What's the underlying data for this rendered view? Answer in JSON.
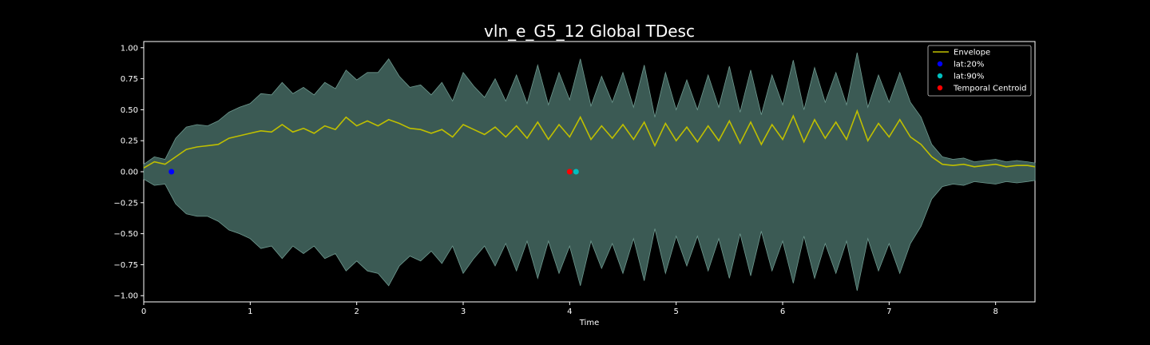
{
  "chart_data": {
    "type": "line",
    "title": "vln_e_G5_12 Global TDesc",
    "xlabel": "Time",
    "ylabel": "",
    "xlim": [
      0,
      8.37
    ],
    "ylim": [
      -1.05,
      1.05
    ],
    "xticks": [
      0,
      1,
      2,
      3,
      4,
      5,
      6,
      7,
      8
    ],
    "xtick_labels": [
      "0",
      "1",
      "2",
      "3",
      "4",
      "5",
      "6",
      "7",
      "8"
    ],
    "yticks": [
      1.0,
      0.75,
      0.5,
      0.25,
      0.0,
      -0.25,
      -0.5,
      -0.75,
      -1.0
    ],
    "ytick_labels": [
      "1.00",
      "0.75",
      "0.50",
      "0.25",
      "0.00",
      "−0.25",
      "−0.50",
      "−0.75",
      "−1.00"
    ],
    "grid": false,
    "legend_position": "top-right",
    "series": [
      {
        "name": "Envelope",
        "kind": "line",
        "color": "#bfbf00",
        "points": [
          [
            0.0,
            0.03
          ],
          [
            0.1,
            0.08
          ],
          [
            0.2,
            0.06
          ],
          [
            0.3,
            0.12
          ],
          [
            0.4,
            0.18
          ],
          [
            0.5,
            0.2
          ],
          [
            0.6,
            0.21
          ],
          [
            0.7,
            0.22
          ],
          [
            0.8,
            0.27
          ],
          [
            0.9,
            0.29
          ],
          [
            1.0,
            0.31
          ],
          [
            1.1,
            0.33
          ],
          [
            1.2,
            0.32
          ],
          [
            1.3,
            0.38
          ],
          [
            1.4,
            0.32
          ],
          [
            1.5,
            0.35
          ],
          [
            1.6,
            0.31
          ],
          [
            1.7,
            0.37
          ],
          [
            1.8,
            0.34
          ],
          [
            1.9,
            0.44
          ],
          [
            2.0,
            0.37
          ],
          [
            2.1,
            0.41
          ],
          [
            2.2,
            0.37
          ],
          [
            2.3,
            0.42
          ],
          [
            2.4,
            0.39
          ],
          [
            2.5,
            0.35
          ],
          [
            2.6,
            0.34
          ],
          [
            2.7,
            0.31
          ],
          [
            2.8,
            0.34
          ],
          [
            2.9,
            0.28
          ],
          [
            3.0,
            0.38
          ],
          [
            3.1,
            0.34
          ],
          [
            3.2,
            0.3
          ],
          [
            3.3,
            0.36
          ],
          [
            3.4,
            0.28
          ],
          [
            3.5,
            0.37
          ],
          [
            3.6,
            0.27
          ],
          [
            3.7,
            0.4
          ],
          [
            3.8,
            0.26
          ],
          [
            3.9,
            0.38
          ],
          [
            4.0,
            0.28
          ],
          [
            4.1,
            0.44
          ],
          [
            4.2,
            0.26
          ],
          [
            4.3,
            0.37
          ],
          [
            4.4,
            0.27
          ],
          [
            4.5,
            0.38
          ],
          [
            4.6,
            0.26
          ],
          [
            4.7,
            0.4
          ],
          [
            4.8,
            0.21
          ],
          [
            4.9,
            0.39
          ],
          [
            5.0,
            0.25
          ],
          [
            5.1,
            0.36
          ],
          [
            5.2,
            0.24
          ],
          [
            5.3,
            0.37
          ],
          [
            5.4,
            0.25
          ],
          [
            5.5,
            0.41
          ],
          [
            5.6,
            0.23
          ],
          [
            5.7,
            0.4
          ],
          [
            5.8,
            0.22
          ],
          [
            5.9,
            0.38
          ],
          [
            6.0,
            0.26
          ],
          [
            6.1,
            0.45
          ],
          [
            6.2,
            0.24
          ],
          [
            6.3,
            0.42
          ],
          [
            6.4,
            0.27
          ],
          [
            6.5,
            0.4
          ],
          [
            6.6,
            0.26
          ],
          [
            6.7,
            0.49
          ],
          [
            6.8,
            0.25
          ],
          [
            6.9,
            0.39
          ],
          [
            7.0,
            0.28
          ],
          [
            7.1,
            0.42
          ],
          [
            7.2,
            0.28
          ],
          [
            7.3,
            0.22
          ],
          [
            7.4,
            0.12
          ],
          [
            7.5,
            0.06
          ],
          [
            7.6,
            0.05
          ],
          [
            7.7,
            0.06
          ],
          [
            7.8,
            0.04
          ],
          [
            7.9,
            0.05
          ],
          [
            8.0,
            0.06
          ],
          [
            8.1,
            0.04
          ],
          [
            8.2,
            0.05
          ],
          [
            8.3,
            0.05
          ],
          [
            8.37,
            0.04
          ]
        ]
      },
      {
        "name": "lat:20%",
        "kind": "marker",
        "color": "#0000ff",
        "points": [
          [
            0.26,
            0.0
          ]
        ]
      },
      {
        "name": "lat:90%",
        "kind": "marker",
        "color": "#00bfbf",
        "points": [
          [
            4.06,
            0.0
          ]
        ]
      },
      {
        "name": "Temporal Centroid",
        "kind": "marker",
        "color": "#ff0000",
        "points": [
          [
            4.0,
            0.0
          ]
        ]
      }
    ],
    "waveform": {
      "kind": "filled-band",
      "color": "#3b5a54",
      "outline_color": "#6f9a90",
      "x": [
        0.0,
        0.1,
        0.2,
        0.3,
        0.4,
        0.5,
        0.6,
        0.7,
        0.8,
        0.9,
        1.0,
        1.1,
        1.2,
        1.3,
        1.4,
        1.5,
        1.6,
        1.7,
        1.8,
        1.9,
        2.0,
        2.1,
        2.2,
        2.3,
        2.4,
        2.5,
        2.6,
        2.7,
        2.8,
        2.9,
        3.0,
        3.1,
        3.2,
        3.3,
        3.4,
        3.5,
        3.6,
        3.7,
        3.8,
        3.9,
        4.0,
        4.1,
        4.2,
        4.3,
        4.4,
        4.5,
        4.6,
        4.7,
        4.8,
        4.9,
        5.0,
        5.1,
        5.2,
        5.3,
        5.4,
        5.5,
        5.6,
        5.7,
        5.8,
        5.9,
        6.0,
        6.1,
        6.2,
        6.3,
        6.4,
        6.5,
        6.6,
        6.7,
        6.8,
        6.9,
        7.0,
        7.1,
        7.2,
        7.3,
        7.4,
        7.5,
        7.6,
        7.7,
        7.8,
        7.9,
        8.0,
        8.1,
        8.2,
        8.3,
        8.37
      ],
      "upper": [
        0.06,
        0.12,
        0.1,
        0.27,
        0.36,
        0.38,
        0.37,
        0.41,
        0.48,
        0.52,
        0.55,
        0.63,
        0.62,
        0.72,
        0.63,
        0.68,
        0.62,
        0.72,
        0.67,
        0.82,
        0.74,
        0.8,
        0.8,
        0.91,
        0.77,
        0.68,
        0.7,
        0.62,
        0.72,
        0.57,
        0.8,
        0.69,
        0.6,
        0.75,
        0.57,
        0.78,
        0.55,
        0.86,
        0.54,
        0.8,
        0.58,
        0.91,
        0.53,
        0.77,
        0.56,
        0.8,
        0.52,
        0.86,
        0.44,
        0.8,
        0.5,
        0.74,
        0.5,
        0.78,
        0.52,
        0.85,
        0.48,
        0.82,
        0.46,
        0.78,
        0.54,
        0.9,
        0.5,
        0.84,
        0.56,
        0.8,
        0.54,
        0.96,
        0.52,
        0.78,
        0.56,
        0.8,
        0.56,
        0.44,
        0.22,
        0.12,
        0.1,
        0.11,
        0.08,
        0.09,
        0.1,
        0.08,
        0.09,
        0.08,
        0.07
      ],
      "lower": [
        -0.06,
        -0.11,
        -0.1,
        -0.26,
        -0.34,
        -0.36,
        -0.36,
        -0.4,
        -0.47,
        -0.5,
        -0.54,
        -0.62,
        -0.6,
        -0.7,
        -0.6,
        -0.66,
        -0.6,
        -0.7,
        -0.66,
        -0.8,
        -0.72,
        -0.8,
        -0.82,
        -0.92,
        -0.76,
        -0.68,
        -0.72,
        -0.64,
        -0.74,
        -0.6,
        -0.82,
        -0.7,
        -0.6,
        -0.76,
        -0.58,
        -0.8,
        -0.56,
        -0.86,
        -0.56,
        -0.82,
        -0.6,
        -0.92,
        -0.56,
        -0.78,
        -0.58,
        -0.82,
        -0.54,
        -0.88,
        -0.46,
        -0.82,
        -0.52,
        -0.76,
        -0.52,
        -0.8,
        -0.54,
        -0.86,
        -0.5,
        -0.84,
        -0.48,
        -0.8,
        -0.56,
        -0.9,
        -0.52,
        -0.86,
        -0.58,
        -0.82,
        -0.56,
        -0.96,
        -0.54,
        -0.8,
        -0.58,
        -0.82,
        -0.58,
        -0.44,
        -0.22,
        -0.12,
        -0.1,
        -0.11,
        -0.08,
        -0.09,
        -0.1,
        -0.08,
        -0.09,
        -0.08,
        -0.07
      ]
    }
  }
}
